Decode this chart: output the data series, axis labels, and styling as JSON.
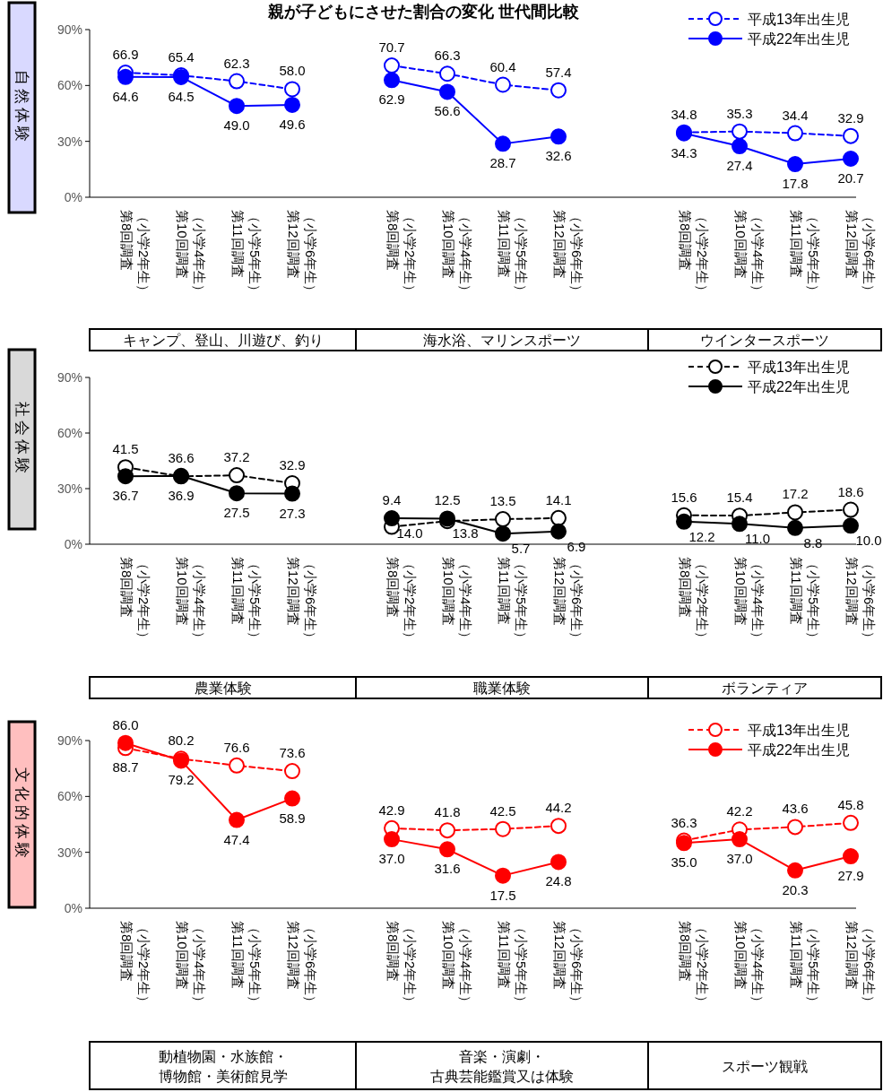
{
  "chart_data": [
    {
      "type": "line",
      "title": "親が子どもにさせた割合の変化 世代間比較",
      "annotations": [
        "自然体験"
      ],
      "xlabel": "キャンプ、登山、川遊び、釣り",
      "categories": [
        "第8回調査（小学2年生）",
        "第10回調査（小学4年生）",
        "第11回調査（小学5年生）",
        "第12回調査（小学6年生）"
      ],
      "ylim": [
        0,
        90
      ],
      "yticks": [
        {
          "value": 0,
          "label": "0%"
        },
        {
          "value": 30,
          "label": "30%"
        },
        {
          "value": 60,
          "label": "60%"
        },
        {
          "value": 90,
          "label": "90%"
        }
      ],
      "marker": "circle",
      "series": [
        {
          "color": "#0000ff",
          "line_style": "dashed",
          "values": [
            66.9,
            65.4,
            62.3,
            58.0
          ],
          "value_labels": [
            "66.9",
            "65.4",
            "62.3",
            "58.0"
          ]
        },
        {
          "color": "#0000ff",
          "line_style": "solid",
          "values": [
            64.6,
            64.5,
            49.0,
            49.6
          ],
          "value_labels": [
            "64.6",
            "64.5",
            "49.0",
            "49.6"
          ]
        }
      ]
    },
    {
      "type": "line",
      "xlabel": "海水浴、マリンスポーツ",
      "categories": [
        "第8回調査（小学2年生）",
        "第10回調査（小学4年生）",
        "第11回調査（小学5年生）",
        "第12回調査（小学6年生）"
      ],
      "ylim": [
        0,
        90
      ],
      "tick_labels": "x",
      "marker": "circle",
      "series": [
        {
          "color": "#0000ff",
          "line_style": "dashed",
          "values": [
            70.7,
            66.3,
            60.4,
            57.4
          ],
          "value_labels": [
            "70.7",
            "66.3",
            "60.4",
            "57.4"
          ]
        },
        {
          "color": "#0000ff",
          "line_style": "solid",
          "values": [
            62.9,
            56.6,
            28.7,
            32.6
          ],
          "value_labels": [
            "62.9",
            "56.6",
            "28.7",
            "32.6"
          ]
        }
      ]
    },
    {
      "type": "line",
      "xlabel": "ウインタースポーツ",
      "categories": [
        "第8回調査（小学2年生）",
        "第10回調査（小学4年生）",
        "第11回調査（小学5年生）",
        "第12回調査（小学6年生）"
      ],
      "ylim": [
        0,
        90
      ],
      "tick_labels": "x",
      "marker": "circle",
      "legend": "top right",
      "series": [
        {
          "name": "平成13年出生児",
          "color": "#0000ff",
          "line_style": "dashed",
          "values": [
            34.8,
            35.3,
            34.4,
            32.9
          ],
          "value_labels": [
            "34.8",
            "35.3",
            "34.4",
            "32.9"
          ]
        },
        {
          "name": "平成22年出生児",
          "color": "#0000ff",
          "line_style": "solid",
          "values": [
            34.3,
            27.4,
            17.8,
            20.7
          ],
          "value_labels": [
            "34.3",
            "27.4",
            "17.8",
            "20.7"
          ]
        }
      ]
    },
    {
      "type": "line",
      "annotations": [
        "社会体験"
      ],
      "xlabel": "農業体験",
      "categories": [
        "第8回調査（小学2年生）",
        "第10回調査（小学4年生）",
        "第11回調査（小学5年生）",
        "第12回調査（小学6年生）"
      ],
      "ylim": [
        0,
        90
      ],
      "yticks": [
        {
          "value": 0,
          "label": "0%"
        },
        {
          "value": 30,
          "label": "30%"
        },
        {
          "value": 60,
          "label": "60%"
        },
        {
          "value": 90,
          "label": "90%"
        }
      ],
      "marker": "circle",
      "series": [
        {
          "color": "#000000",
          "line_style": "dashed",
          "values": [
            41.5,
            36.6,
            37.2,
            32.9
          ],
          "value_labels": [
            "41.5",
            "36.6",
            "37.2",
            "32.9"
          ]
        },
        {
          "color": "#000000",
          "line_style": "solid",
          "values": [
            36.7,
            36.9,
            27.5,
            27.3
          ],
          "value_labels": [
            "36.7",
            "36.9",
            "27.5",
            "27.3"
          ]
        }
      ]
    },
    {
      "type": "line",
      "xlabel": "職業体験",
      "categories": [
        "第8回調査（小学2年生）",
        "第10回調査（小学4年生）",
        "第11回調査（小学5年生）",
        "第12回調査（小学6年生）"
      ],
      "ylim": [
        0,
        90
      ],
      "tick_labels": "x",
      "marker": "circle",
      "series": [
        {
          "color": "#000000",
          "line_style": "dashed",
          "values": [
            9.4,
            12.5,
            13.5,
            14.1
          ],
          "value_labels": [
            "9.4",
            "12.5",
            "13.5",
            "14.1"
          ]
        },
        {
          "color": "#000000",
          "line_style": "solid",
          "values": [
            14.0,
            13.8,
            5.7,
            6.9
          ],
          "value_labels": [
            "14.0",
            "13.8",
            "5.7",
            "6.9"
          ]
        }
      ]
    },
    {
      "type": "line",
      "xlabel": "ボランティア",
      "categories": [
        "第8回調査（小学2年生）",
        "第10回調査（小学4年生）",
        "第11回調査（小学5年生）",
        "第12回調査（小学6年生）"
      ],
      "ylim": [
        0,
        90
      ],
      "tick_labels": "x",
      "marker": "circle",
      "legend": "top right",
      "series": [
        {
          "name": "平成13年出生児",
          "color": "#000000",
          "line_style": "dashed",
          "values": [
            15.6,
            15.4,
            17.2,
            18.6
          ],
          "value_labels": [
            "15.6",
            "15.4",
            "17.2",
            "18.6"
          ]
        },
        {
          "name": "平成22年出生児",
          "color": "#000000",
          "line_style": "solid",
          "values": [
            12.2,
            11.0,
            8.8,
            10.0
          ],
          "value_labels": [
            "12.2",
            "11.0",
            "8.8",
            "10.0"
          ]
        }
      ]
    },
    {
      "type": "line",
      "annotations": [
        "文化的体験"
      ],
      "xlabel": "動植物園・水族館・博物館・美術館見学",
      "categories": [
        "第8回調査（小学2年生）",
        "第10回調査（小学4年生）",
        "第11回調査（小学5年生）",
        "第12回調査（小学6年生）"
      ],
      "ylim": [
        0,
        90
      ],
      "yticks": [
        {
          "value": 0,
          "label": "0%"
        },
        {
          "value": 30,
          "label": "30%"
        },
        {
          "value": 60,
          "label": "60%"
        },
        {
          "value": 90,
          "label": "90%"
        }
      ],
      "marker": "circle",
      "series": [
        {
          "color": "#ff0000",
          "line_style": "dashed",
          "values": [
            86.0,
            80.2,
            76.6,
            73.6
          ],
          "value_labels": [
            "86.0",
            "80.2",
            "76.6",
            "73.6"
          ]
        },
        {
          "color": "#ff0000",
          "line_style": "solid",
          "values": [
            88.7,
            79.2,
            47.4,
            58.9
          ],
          "value_labels": [
            "88.7",
            "79.2",
            "47.4",
            "58.9"
          ]
        }
      ]
    },
    {
      "type": "line",
      "xlabel": "音楽・演劇・古典芸能鑑賞又は体験",
      "categories": [
        "第8回調査（小学2年生）",
        "第10回調査（小学4年生）",
        "第11回調査（小学5年生）",
        "第12回調査（小学6年生）"
      ],
      "ylim": [
        0,
        90
      ],
      "tick_labels": "x",
      "marker": "circle",
      "series": [
        {
          "color": "#ff0000",
          "line_style": "dashed",
          "values": [
            42.9,
            41.8,
            42.5,
            44.2
          ],
          "value_labels": [
            "42.9",
            "41.8",
            "42.5",
            "44.2"
          ]
        },
        {
          "color": "#ff0000",
          "line_style": "solid",
          "values": [
            37.0,
            31.6,
            17.5,
            24.8
          ],
          "value_labels": [
            "37.0",
            "31.6",
            "17.5",
            "24.8"
          ]
        }
      ]
    },
    {
      "type": "line",
      "xlabel": "スポーツ観戦",
      "categories": [
        "第8回調査（小学2年生）",
        "第10回調査（小学4年生）",
        "第11回調査（小学5年生）",
        "第12回調査（小学6年生）"
      ],
      "ylim": [
        0,
        90
      ],
      "tick_labels": "x",
      "marker": "circle",
      "legend": "top right",
      "series": [
        {
          "name": "平成13年出生児",
          "color": "#ff0000",
          "line_style": "dashed",
          "values": [
            36.3,
            42.2,
            43.6,
            45.8
          ],
          "value_labels": [
            "36.3",
            "42.2",
            "43.6",
            "45.8"
          ]
        },
        {
          "name": "平成22年出生児",
          "color": "#ff0000",
          "line_style": "solid",
          "values": [
            35.0,
            37.0,
            20.3,
            27.9
          ],
          "value_labels": [
            "35.0",
            "37.0",
            "20.3",
            "27.9"
          ]
        }
      ]
    }
  ]
}
